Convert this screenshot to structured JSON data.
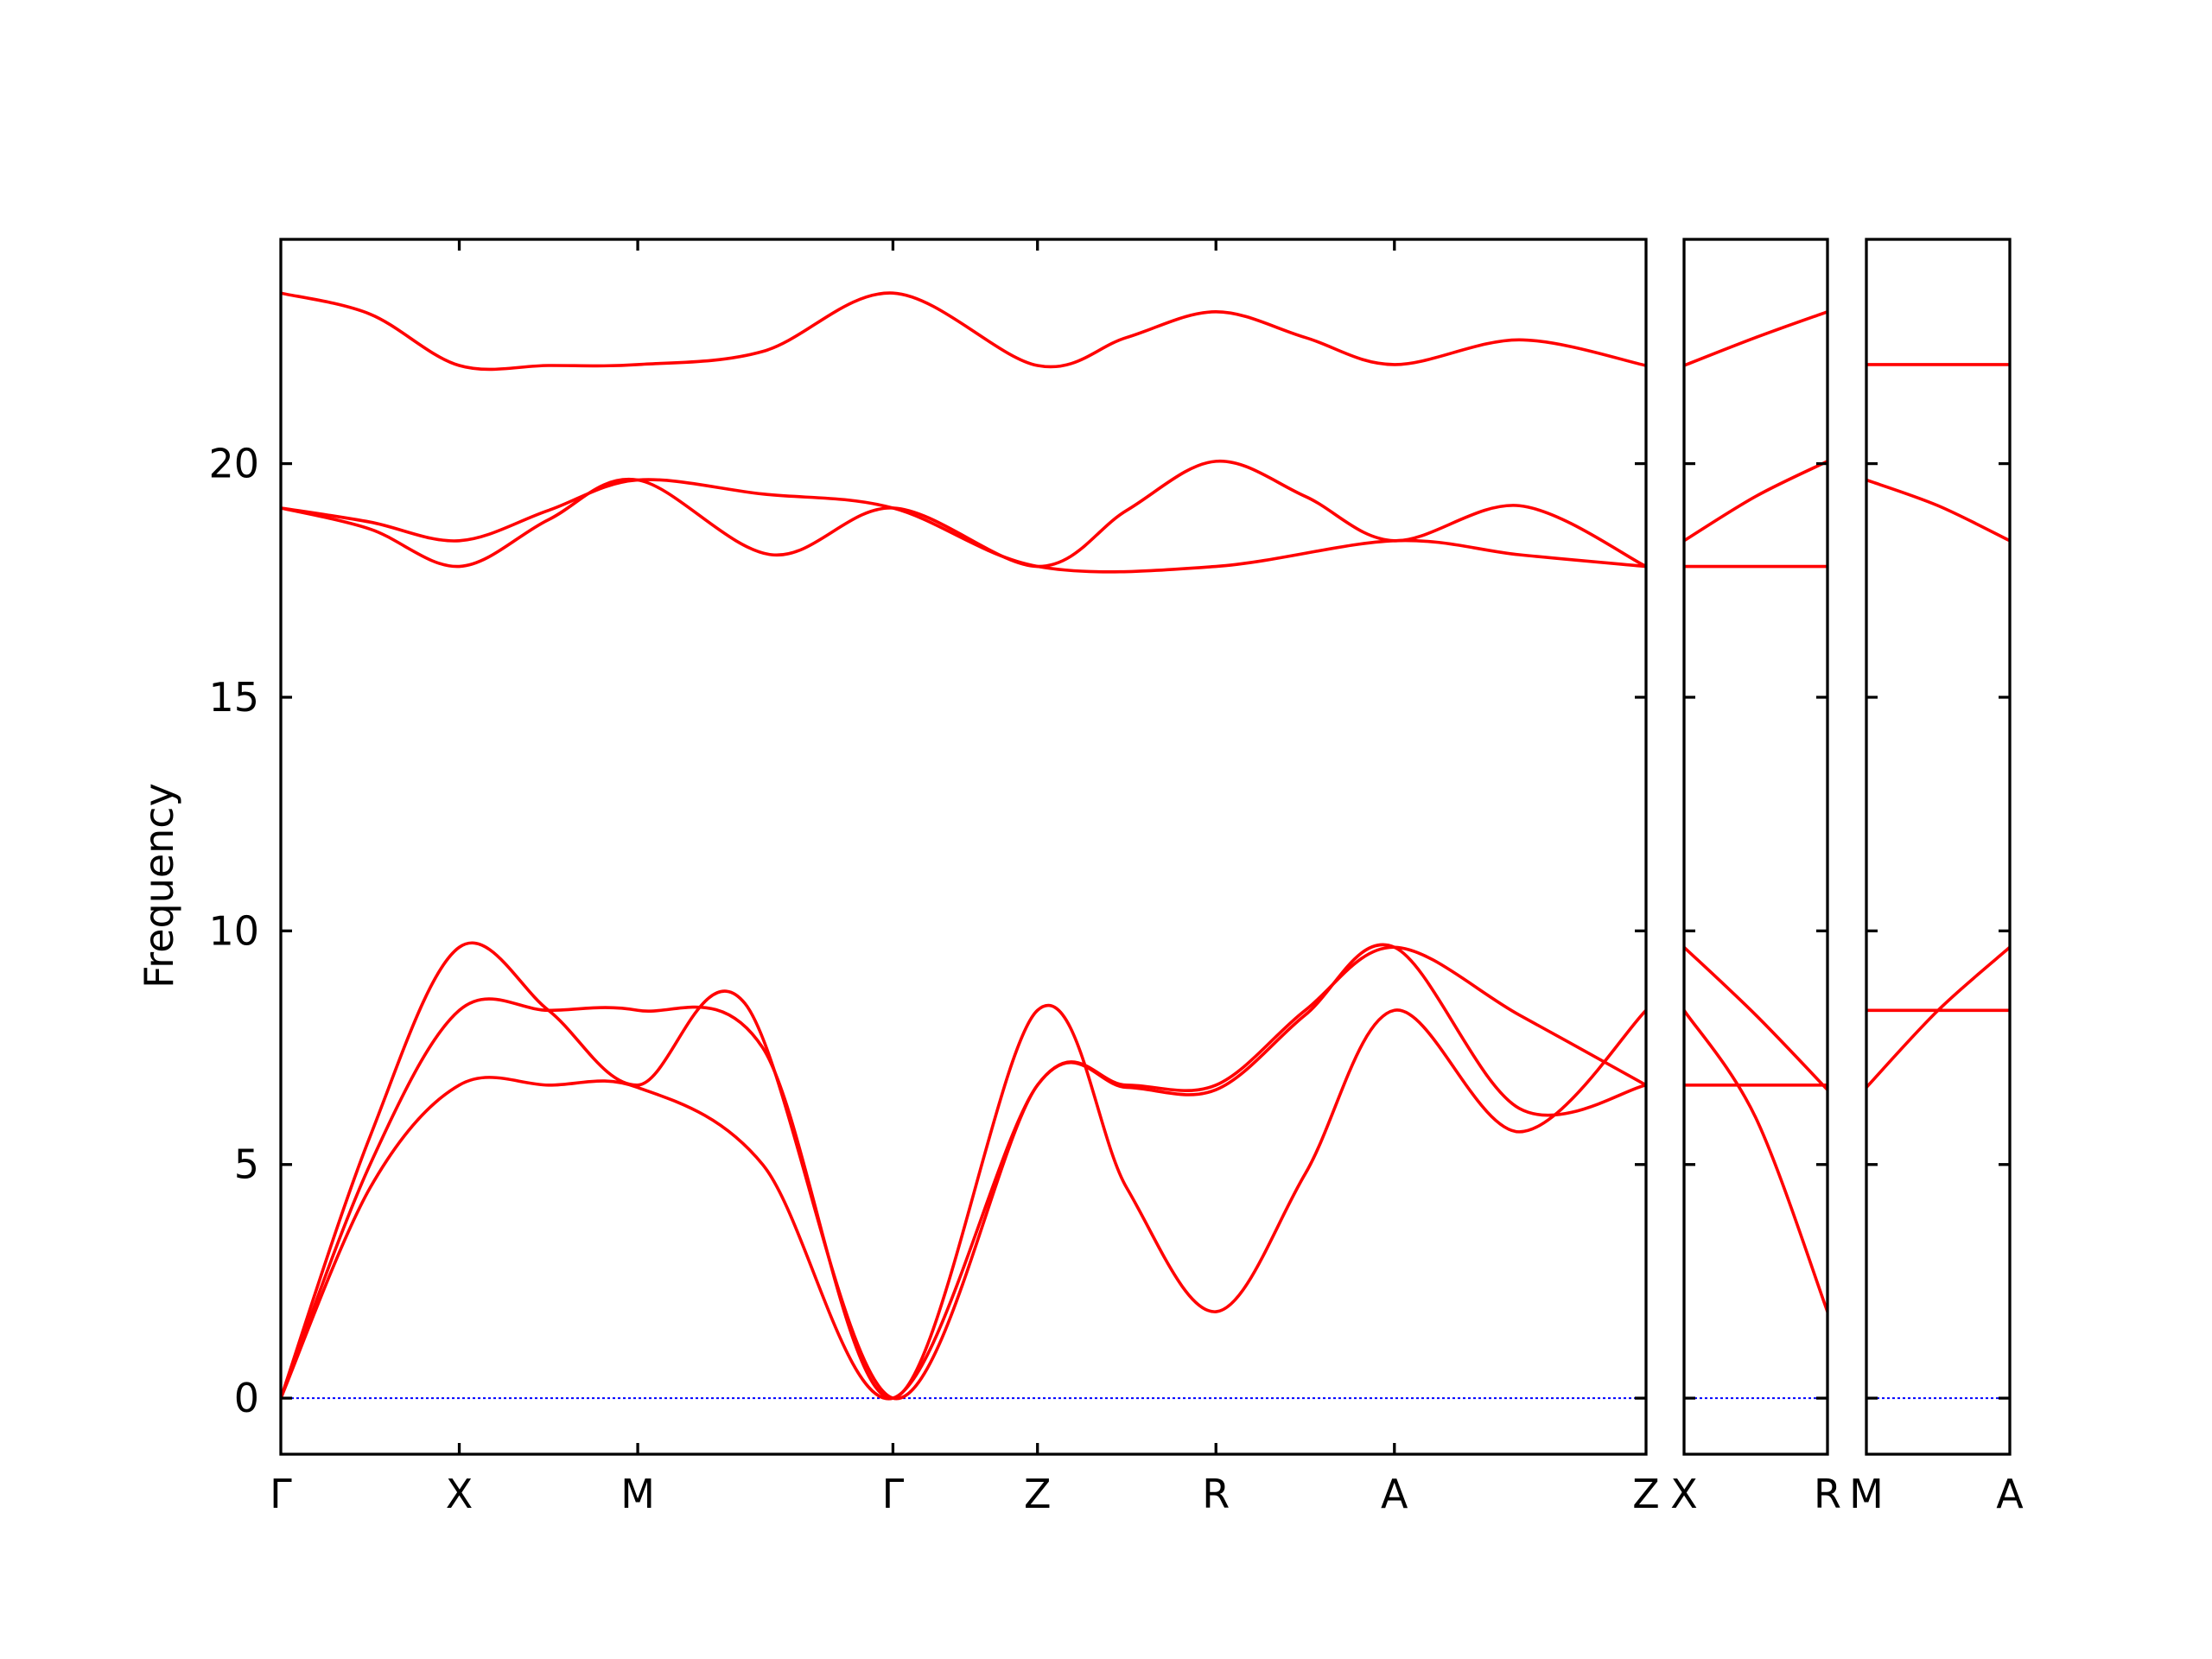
{
  "chart_data": {
    "type": "line",
    "title": "",
    "xlabel": "",
    "ylabel": "Frequency",
    "ylim": [
      -1.2,
      24.8
    ],
    "yticks": [
      0,
      5,
      10,
      15,
      20
    ],
    "grid": false,
    "legend": "none",
    "colors": {
      "band": "#ff0000",
      "zero_line": "#0000ff"
    },
    "panels": [
      {
        "labels": [
          "Γ",
          "X",
          "M",
          "Γ",
          "Z",
          "R",
          "A",
          "Z"
        ],
        "x_range": [
          0,
          7.65
        ],
        "label_x": [
          0,
          1,
          2,
          3.43,
          4.24,
          5.24,
          6.24,
          7.65
        ],
        "series": [
          {
            "x": [
              0,
              0.5,
              1,
              1.5,
              2,
              2.7,
              3.43,
              4.24,
              4.74,
              5.24,
              5.74,
              6.24,
              6.94,
              7.65
            ],
            "y": [
              23.65,
              23.2,
              22.1,
              22.1,
              22.12,
              22.4,
              23.65,
              22.1,
              22.7,
              23.25,
              22.7,
              22.12,
              22.65,
              22.1
            ]
          },
          {
            "x": [
              0,
              0.5,
              1,
              1.5,
              2,
              2.7,
              3.43,
              4.24,
              5.24,
              6.24,
              6.94,
              7.65
            ],
            "y": [
              19.05,
              18.75,
              18.35,
              19.0,
              19.65,
              19.35,
              19.05,
              17.8,
              17.8,
              18.35,
              18.05,
              17.8
            ]
          },
          {
            "x": [
              0,
              0.5,
              1,
              1.5,
              2,
              2.75,
              3.43,
              4.24,
              4.74,
              5.24,
              5.74,
              6.24,
              6.94,
              7.65
            ],
            "y": [
              19.05,
              18.6,
              17.8,
              18.8,
              19.65,
              18.05,
              19.05,
              17.8,
              19.0,
              20.05,
              19.3,
              18.35,
              19.1,
              17.8
            ]
          },
          {
            "x": [
              0,
              0.5,
              1,
              1.5,
              2,
              2.6,
              3.43,
              4.24,
              4.74,
              5.24,
              5.74,
              6.24,
              6.94,
              7.65
            ],
            "y": [
              0,
              5.6,
              9.65,
              8.3,
              6.7,
              8.45,
              0,
              6.7,
              6.7,
              6.7,
              8.3,
              9.65,
              8.2,
              6.7
            ]
          },
          {
            "x": [
              0,
              0.5,
              1,
              1.5,
              2,
              2.7,
              3.43,
              4.24,
              4.74,
              5.24,
              5.74,
              6.24,
              6.94,
              7.65
            ],
            "y": [
              0,
              5.0,
              8.3,
              8.3,
              8.3,
              7.5,
              0,
              8.3,
              4.5,
              1.85,
              4.8,
              8.3,
              5.7,
              8.3
            ]
          },
          {
            "x": [
              0,
              0.5,
              1,
              1.5,
              2,
              2.7,
              3.43,
              4.24,
              4.74,
              5.24,
              5.74,
              6.24,
              6.94,
              7.65
            ],
            "y": [
              0,
              4.5,
              6.7,
              6.7,
              6.65,
              5.0,
              0,
              6.7,
              6.65,
              6.6,
              8.2,
              9.65,
              6.2,
              6.7
            ]
          }
        ]
      },
      {
        "labels": [
          "X",
          "R"
        ],
        "x_range": [
          0,
          1
        ],
        "label_x": [
          0,
          1
        ],
        "series": [
          {
            "x": [
              0,
              0.5,
              1
            ],
            "y": [
              22.1,
              22.7,
              23.25
            ]
          },
          {
            "x": [
              0,
              0.5,
              1
            ],
            "y": [
              18.35,
              19.3,
              20.05
            ]
          },
          {
            "x": [
              0,
              0.5,
              1
            ],
            "y": [
              17.8,
              17.8,
              17.8
            ]
          },
          {
            "x": [
              0,
              0.5,
              1
            ],
            "y": [
              9.65,
              8.2,
              6.6
            ]
          },
          {
            "x": [
              0,
              0.5,
              1
            ],
            "y": [
              8.3,
              6.0,
              1.85
            ]
          },
          {
            "x": [
              0,
              0.5,
              1
            ],
            "y": [
              6.7,
              6.7,
              6.7
            ]
          }
        ]
      },
      {
        "labels": [
          "M",
          "A"
        ],
        "x_range": [
          0,
          1
        ],
        "label_x": [
          0,
          1
        ],
        "series": [
          {
            "x": [
              0,
              0.5,
              1
            ],
            "y": [
              22.12,
              22.12,
              22.12
            ]
          },
          {
            "x": [
              0,
              0.5,
              1
            ],
            "y": [
              19.65,
              19.1,
              18.35
            ]
          },
          {
            "x": [
              0,
              0.5,
              1
            ],
            "y": [
              8.3,
              8.3,
              8.3
            ]
          },
          {
            "x": [
              0,
              0.5,
              1
            ],
            "y": [
              6.65,
              8.3,
              9.65
            ]
          }
        ]
      }
    ]
  }
}
